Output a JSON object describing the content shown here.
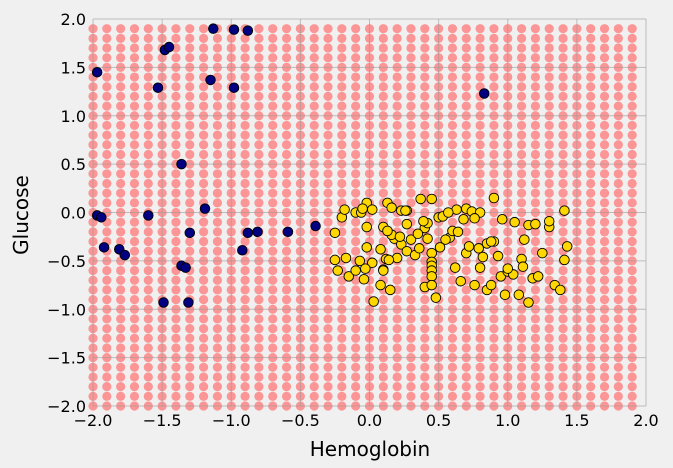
{
  "chart_data": {
    "type": "scatter",
    "title": "",
    "xlabel": "Hemoglobin",
    "ylabel": "Glucose",
    "xlim": [
      -2.0,
      2.0
    ],
    "ylim": [
      -2.0,
      2.0
    ],
    "xticks": [
      "−2.0",
      "−1.5",
      "−1.0",
      "−0.5",
      "0.0",
      "0.5",
      "1.0",
      "1.5",
      "2.0"
    ],
    "yticks": [
      "−2.0",
      "−1.5",
      "−1.0",
      "−0.5",
      "0.0",
      "0.5",
      "1.0",
      "1.5",
      "2.0"
    ],
    "grid": true,
    "background_grid": {
      "start": -2.0,
      "stop": 1.9,
      "step": 0.1,
      "color": "#ff8080",
      "opacity": 0.8
    },
    "series": [
      {
        "color": "#000080",
        "points": [
          [
            -1.97,
            1.45
          ],
          [
            -1.53,
            1.29
          ],
          [
            -1.48,
            1.68
          ],
          [
            -1.45,
            1.71
          ],
          [
            -1.13,
            1.9
          ],
          [
            -0.98,
            1.89
          ],
          [
            -0.88,
            1.88
          ],
          [
            -1.15,
            1.37
          ],
          [
            -0.98,
            1.29
          ],
          [
            -1.36,
            0.5
          ],
          [
            0.83,
            1.23
          ],
          [
            -1.97,
            -0.03
          ],
          [
            -1.94,
            -0.05
          ],
          [
            -1.92,
            -0.36
          ],
          [
            -1.81,
            -0.38
          ],
          [
            -1.77,
            -0.44
          ],
          [
            -1.6,
            -0.03
          ],
          [
            -1.19,
            0.04
          ],
          [
            -1.3,
            -0.21
          ],
          [
            -1.36,
            -0.55
          ],
          [
            -1.33,
            -0.57
          ],
          [
            -0.92,
            -0.39
          ],
          [
            -0.88,
            -0.21
          ],
          [
            -0.81,
            -0.2
          ],
          [
            -0.59,
            -0.2
          ],
          [
            -0.39,
            -0.14
          ],
          [
            -1.49,
            -0.93
          ],
          [
            -1.31,
            -0.93
          ]
        ]
      },
      {
        "color": "#ffd700",
        "points": [
          [
            -0.25,
            -0.21
          ],
          [
            -0.2,
            -0.05
          ],
          [
            -0.18,
            0.03
          ],
          [
            -0.1,
            0.0
          ],
          [
            -0.06,
            0.0
          ],
          [
            -0.02,
            0.1
          ],
          [
            0.02,
            0.03
          ],
          [
            0.13,
            0.1
          ],
          [
            0.16,
            0.05
          ],
          [
            0.23,
            0.02
          ],
          [
            0.27,
            0.02
          ],
          [
            0.37,
            0.14
          ],
          [
            0.45,
            0.14
          ],
          [
            0.5,
            -0.05
          ],
          [
            0.53,
            -0.04
          ],
          [
            0.63,
            0.03
          ],
          [
            0.7,
            0.04
          ],
          [
            0.74,
            0.01
          ],
          [
            0.8,
            0.0
          ],
          [
            0.9,
            0.15
          ],
          [
            1.41,
            0.02
          ],
          [
            -0.25,
            -0.49
          ],
          [
            -0.17,
            -0.47
          ],
          [
            -0.15,
            -0.66
          ],
          [
            -0.1,
            -0.6
          ],
          [
            -0.07,
            -0.5
          ],
          [
            -0.04,
            -0.69
          ],
          [
            -0.02,
            -0.36
          ],
          [
            0.02,
            -0.52
          ],
          [
            0.08,
            -0.75
          ],
          [
            0.08,
            -0.38
          ],
          [
            0.1,
            -0.59
          ],
          [
            0.12,
            -0.48
          ],
          [
            0.15,
            -0.8
          ],
          [
            0.18,
            -0.27
          ],
          [
            0.2,
            -0.47
          ],
          [
            0.23,
            -0.33
          ],
          [
            0.27,
            -0.4
          ],
          [
            0.3,
            -0.28
          ],
          [
            0.33,
            -0.44
          ],
          [
            0.36,
            -0.37
          ],
          [
            0.4,
            -0.77
          ],
          [
            0.45,
            -0.42
          ],
          [
            0.45,
            -0.51
          ],
          [
            0.45,
            -0.55
          ],
          [
            0.45,
            -0.6
          ],
          [
            0.45,
            -0.66
          ],
          [
            0.45,
            -0.75
          ],
          [
            0.48,
            -0.88
          ],
          [
            0.58,
            -0.26
          ],
          [
            0.6,
            -0.19
          ],
          [
            0.62,
            -0.57
          ],
          [
            0.64,
            -0.2
          ],
          [
            0.66,
            -0.71
          ],
          [
            0.7,
            -0.42
          ],
          [
            0.72,
            -0.35
          ],
          [
            0.76,
            -0.75
          ],
          [
            0.8,
            -0.57
          ],
          [
            0.82,
            -0.46
          ],
          [
            0.85,
            -0.8
          ],
          [
            0.88,
            -0.75
          ],
          [
            0.9,
            -0.3
          ],
          [
            0.95,
            -0.66
          ],
          [
            0.98,
            -0.85
          ],
          [
            1.0,
            -0.61
          ],
          [
            1.04,
            -0.64
          ],
          [
            1.08,
            -0.85
          ],
          [
            1.1,
            -0.48
          ],
          [
            1.15,
            -0.93
          ],
          [
            1.15,
            -0.13
          ],
          [
            1.18,
            -0.68
          ],
          [
            1.22,
            -0.66
          ],
          [
            1.25,
            -0.42
          ],
          [
            1.3,
            -0.15
          ],
          [
            1.3,
            -0.09
          ],
          [
            1.34,
            -0.75
          ],
          [
            1.38,
            -0.8
          ],
          [
            1.41,
            -0.49
          ],
          [
            1.43,
            -0.35
          ],
          [
            -0.02,
            -0.15
          ],
          [
            0.1,
            -0.15
          ],
          [
            0.16,
            -0.23
          ],
          [
            0.4,
            -0.16
          ],
          [
            0.42,
            -0.27
          ],
          [
            0.42,
            -0.11
          ],
          [
            0.55,
            -0.28
          ],
          [
            0.68,
            -0.07
          ],
          [
            0.76,
            -0.06
          ],
          [
            0.85,
            -0.32
          ],
          [
            0.88,
            -0.3
          ],
          [
            0.96,
            -0.07
          ],
          [
            1.05,
            -0.1
          ],
          [
            1.12,
            -0.28
          ],
          [
            1.2,
            -0.12
          ],
          [
            -0.23,
            -0.6
          ],
          [
            0.03,
            -0.92
          ],
          [
            0.22,
            -0.25
          ],
          [
            0.35,
            -0.22
          ],
          [
            0.39,
            -0.09
          ],
          [
            0.51,
            -0.36
          ],
          [
            0.57,
            0.0
          ],
          [
            0.79,
            -0.37
          ],
          [
            0.93,
            -0.45
          ],
          [
            1.0,
            -0.58
          ],
          [
            1.11,
            -0.56
          ],
          [
            0.1,
            -0.6
          ],
          [
            0.27,
            -0.12
          ],
          [
            0.13,
            -0.19
          ],
          [
            0.26,
            0.02
          ],
          [
            -0.05,
            0.04
          ],
          [
            -0.03,
            -0.58
          ],
          [
            0.14,
            -0.49
          ]
        ]
      }
    ]
  }
}
